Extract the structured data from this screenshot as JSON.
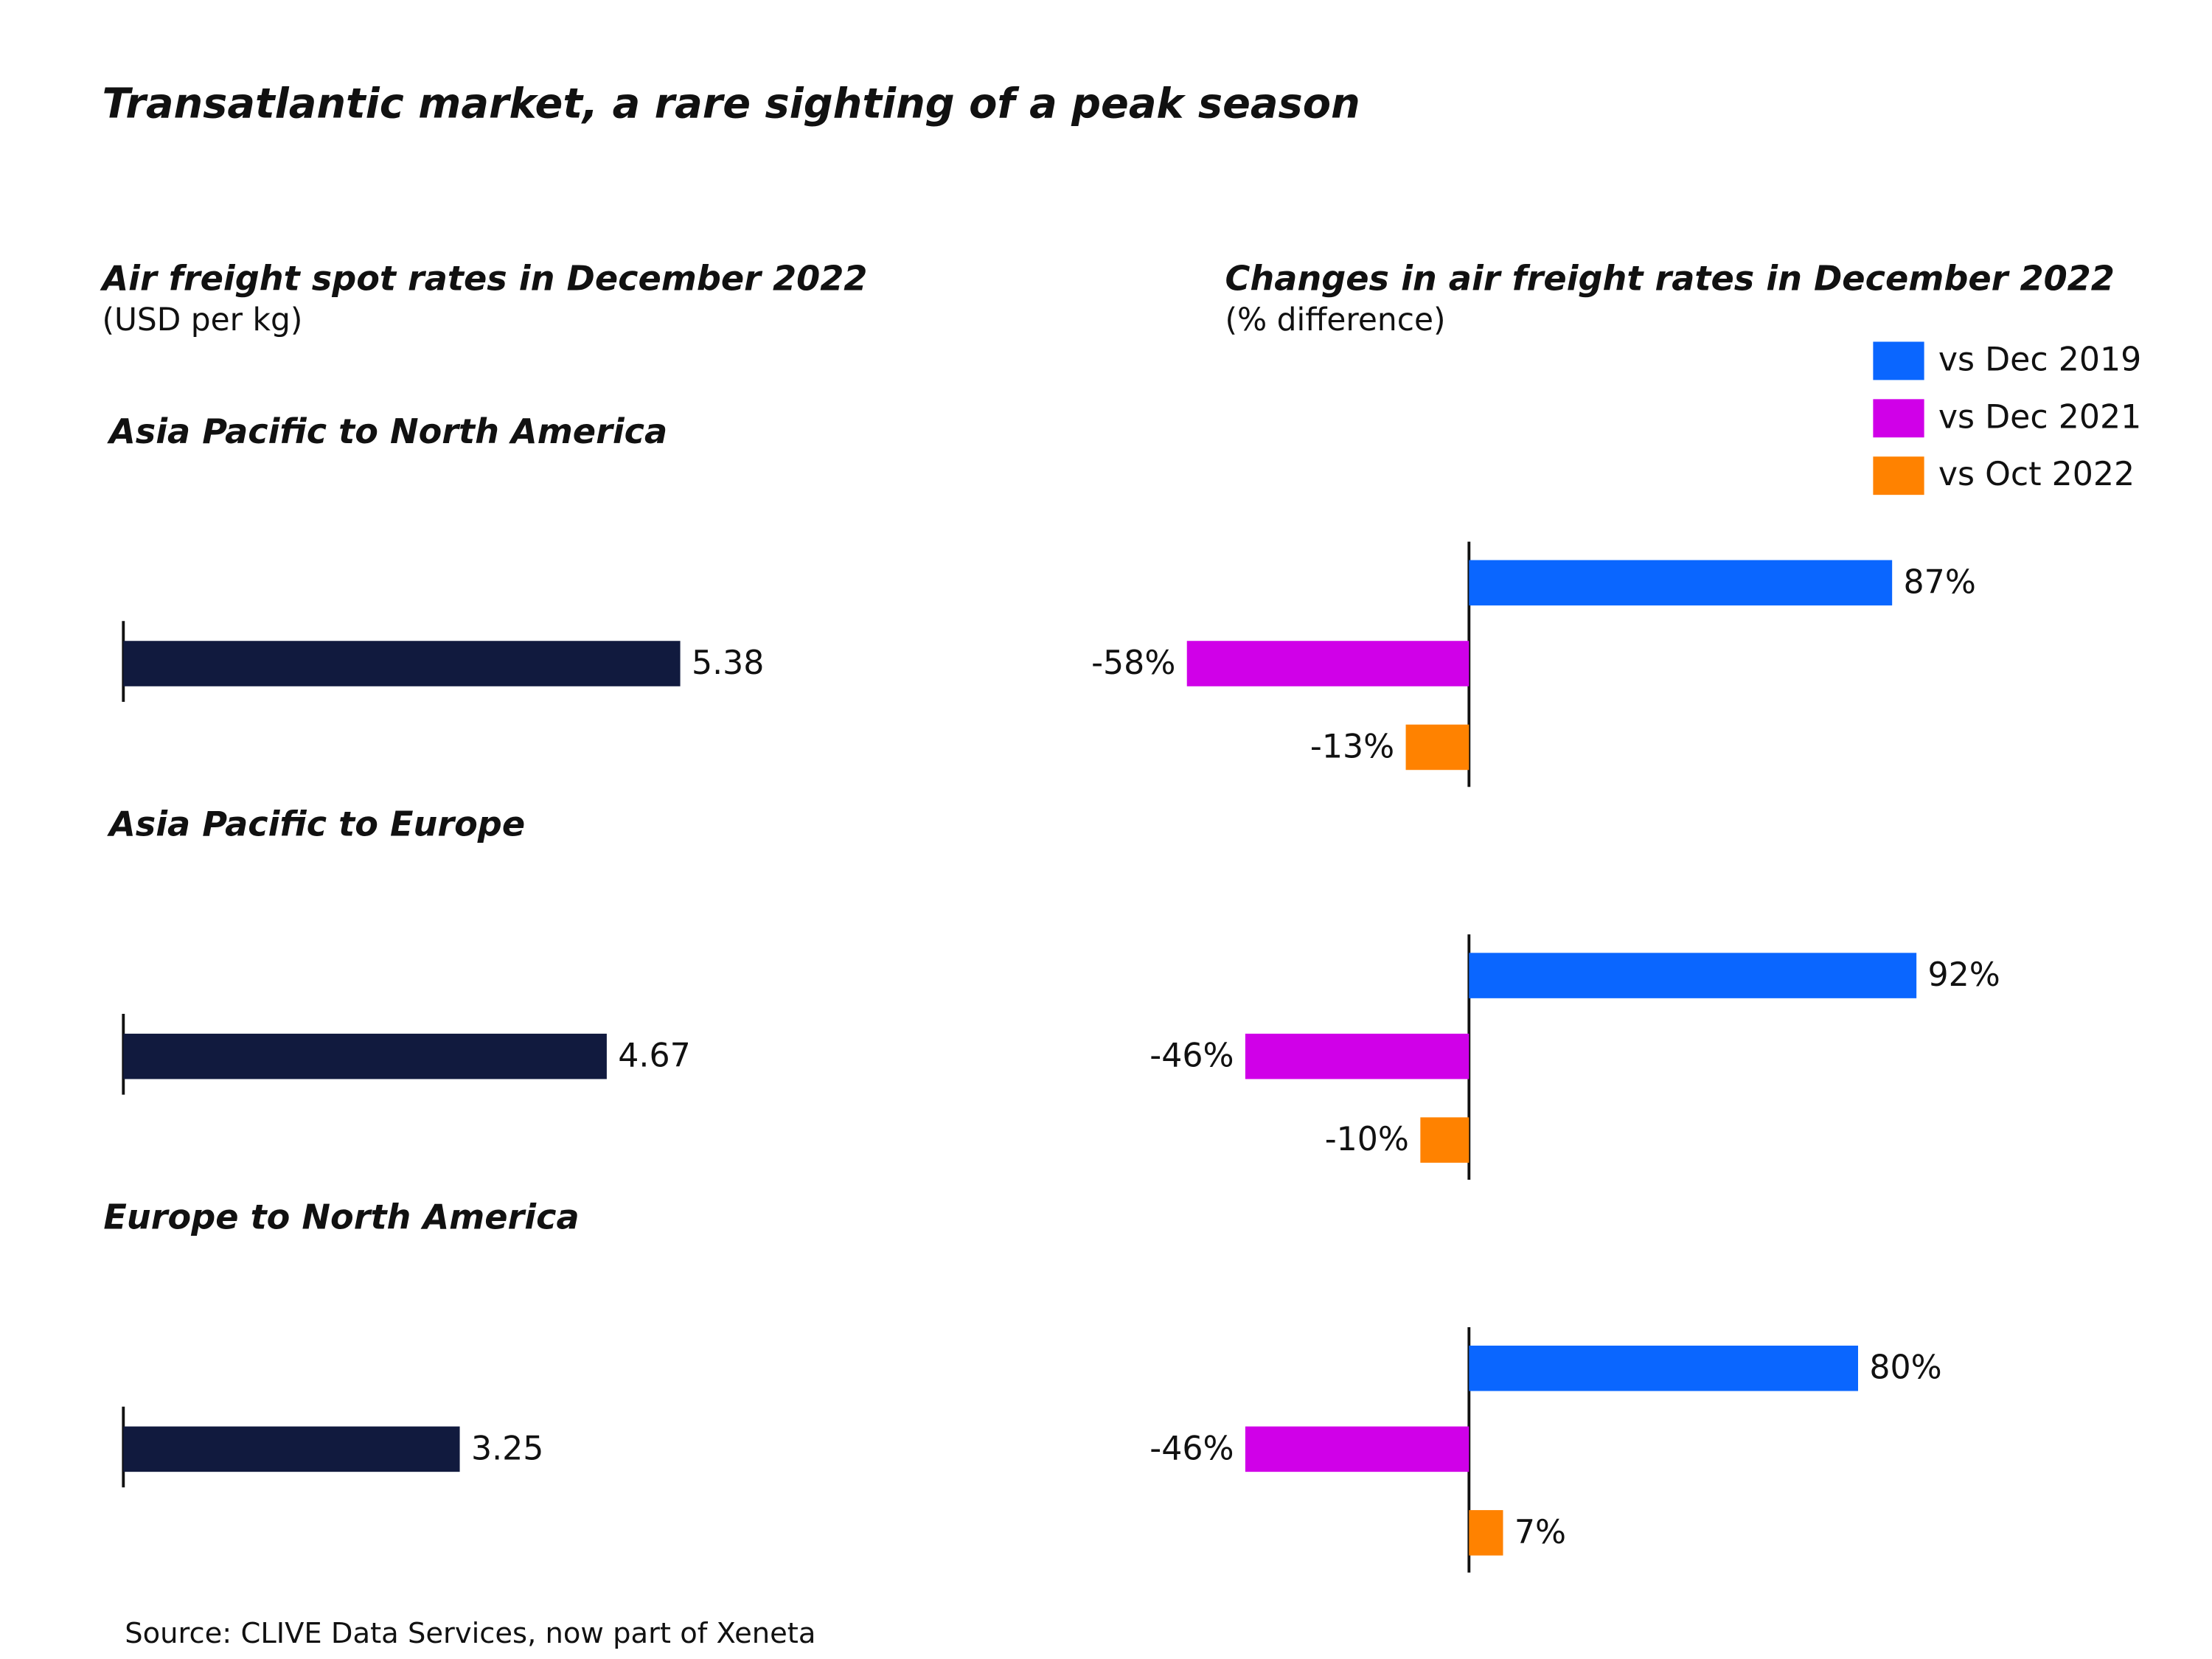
{
  "title": "Transatlantic market, a rare sighting of a peak season",
  "source": "Source: CLIVE Data Services, now part of Xeneta",
  "chart_data": [
    {
      "type": "bar",
      "orientation": "horizontal",
      "title": "Air freight spot rates in December 2022",
      "subtitle": "(USD per kg)",
      "categories": [
        "Asia Pacific to North America",
        "Asia Pacific to Europe",
        "Europe to North America"
      ],
      "values": [
        5.38,
        4.67,
        3.25
      ],
      "color": "#111a3e"
    },
    {
      "type": "bar",
      "orientation": "horizontal",
      "title": "Changes in air freight rates in December 2022",
      "subtitle": "(% difference)",
      "legend": "top-right",
      "series": [
        {
          "name": "vs Dec 2019",
          "color": "#0a66ff",
          "values": [
            87,
            92,
            80
          ],
          "value_labels": [
            "87%",
            "92%",
            "80%"
          ]
        },
        {
          "name": "vs Dec 2021",
          "color": "#d000e8",
          "values": [
            -58,
            -46,
            -46
          ],
          "value_labels": [
            "-58%",
            "-46%",
            "-46%"
          ]
        },
        {
          "name": "vs Oct 2022",
          "color": "#ff8200",
          "values": [
            -13,
            -10,
            7
          ],
          "value_labels": [
            "-13%",
            "-10%",
            "7%"
          ]
        }
      ]
    }
  ]
}
